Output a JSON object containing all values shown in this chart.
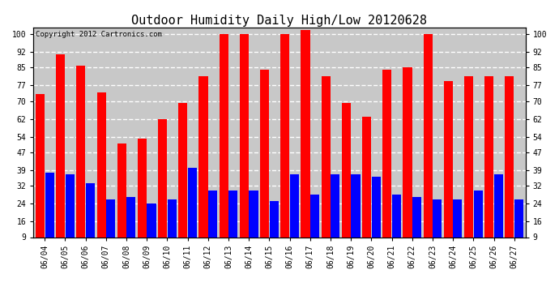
{
  "title": "Outdoor Humidity Daily High/Low 20120628",
  "copyright": "Copyright 2012 Cartronics.com",
  "dates": [
    "06/04",
    "06/05",
    "06/06",
    "06/07",
    "06/08",
    "06/09",
    "06/10",
    "06/11",
    "06/12",
    "06/13",
    "06/14",
    "06/15",
    "06/16",
    "06/17",
    "06/18",
    "06/19",
    "06/20",
    "06/21",
    "06/22",
    "06/23",
    "06/24",
    "06/25",
    "06/26",
    "06/27"
  ],
  "high": [
    73,
    91,
    86,
    74,
    51,
    53,
    62,
    69,
    81,
    100,
    100,
    84,
    100,
    102,
    81,
    69,
    63,
    84,
    85,
    100,
    79,
    81,
    81,
    81
  ],
  "low": [
    38,
    37,
    33,
    26,
    27,
    24,
    26,
    40,
    30,
    30,
    30,
    25,
    37,
    28,
    37,
    37,
    36,
    28,
    27,
    26,
    26,
    30,
    37,
    26
  ],
  "bar_color_high": "#ff0000",
  "bar_color_low": "#0000ff",
  "background_color": "#ffffff",
  "plot_background": "#c8c8c8",
  "grid_color": "#ffffff",
  "yticks": [
    9,
    16,
    24,
    32,
    39,
    47,
    54,
    62,
    70,
    77,
    85,
    92,
    100
  ],
  "ymin": 9,
  "ymax": 103,
  "title_fontsize": 11,
  "tick_fontsize": 7,
  "copyright_fontsize": 6.5
}
